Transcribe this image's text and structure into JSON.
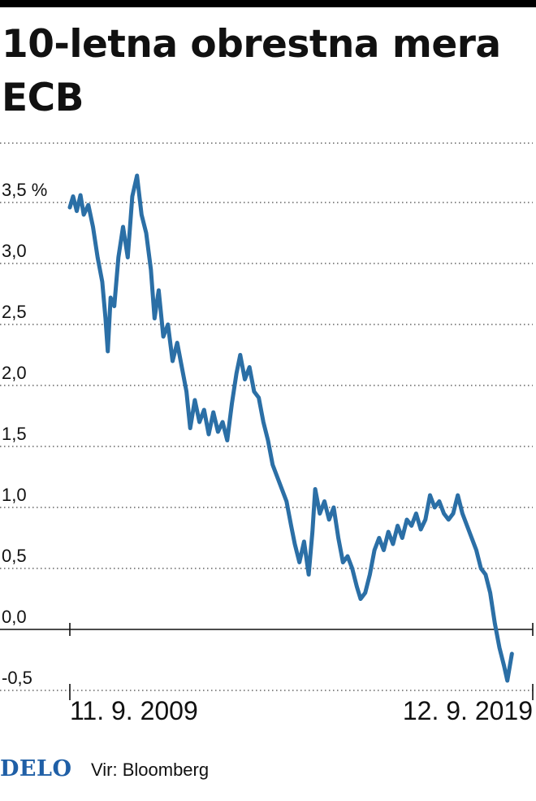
{
  "title": "10-letna obrestna mera ECB",
  "footer": {
    "brand": "DELO",
    "source": "Vir: Bloomberg"
  },
  "chart_data": {
    "type": "line",
    "title": "10-letna obrestna mera ECB",
    "xlabel": "",
    "ylabel": "",
    "ylim": [
      -0.6,
      3.9
    ],
    "y_ticks": [
      "3,5 %",
      "3,0",
      "2,5",
      "2,0",
      "1,5",
      "1,0",
      "0,5",
      "0,0",
      "-0,5"
    ],
    "y_tick_values": [
      3.5,
      3.0,
      2.5,
      2.0,
      1.5,
      1.0,
      0.5,
      0.0,
      -0.5
    ],
    "x_ticks": [
      "11. 9. 2009",
      "12. 9. 2019"
    ],
    "x_tick_values": [
      2009.7,
      2019.7
    ],
    "line_color": "#2b6fa6",
    "grid": "dotted horizontal",
    "series": [
      {
        "values": [
          [
            2009.7,
            3.46
          ],
          [
            2009.77,
            3.55
          ],
          [
            2009.85,
            3.43
          ],
          [
            2009.93,
            3.56
          ],
          [
            2010.0,
            3.4
          ],
          [
            2010.1,
            3.48
          ],
          [
            2010.2,
            3.3
          ],
          [
            2010.3,
            3.05
          ],
          [
            2010.4,
            2.85
          ],
          [
            2010.47,
            2.55
          ],
          [
            2010.52,
            2.28
          ],
          [
            2010.58,
            2.72
          ],
          [
            2010.66,
            2.65
          ],
          [
            2010.75,
            3.05
          ],
          [
            2010.85,
            3.3
          ],
          [
            2010.95,
            3.05
          ],
          [
            2011.05,
            3.55
          ],
          [
            2011.15,
            3.72
          ],
          [
            2011.25,
            3.4
          ],
          [
            2011.35,
            3.25
          ],
          [
            2011.45,
            2.95
          ],
          [
            2011.53,
            2.55
          ],
          [
            2011.62,
            2.78
          ],
          [
            2011.72,
            2.4
          ],
          [
            2011.82,
            2.5
          ],
          [
            2011.92,
            2.2
          ],
          [
            2012.02,
            2.35
          ],
          [
            2012.12,
            2.15
          ],
          [
            2012.22,
            1.95
          ],
          [
            2012.3,
            1.65
          ],
          [
            2012.4,
            1.88
          ],
          [
            2012.5,
            1.7
          ],
          [
            2012.6,
            1.8
          ],
          [
            2012.7,
            1.6
          ],
          [
            2012.8,
            1.78
          ],
          [
            2012.9,
            1.62
          ],
          [
            2013.0,
            1.7
          ],
          [
            2013.1,
            1.55
          ],
          [
            2013.2,
            1.85
          ],
          [
            2013.3,
            2.1
          ],
          [
            2013.38,
            2.25
          ],
          [
            2013.48,
            2.05
          ],
          [
            2013.58,
            2.15
          ],
          [
            2013.68,
            1.95
          ],
          [
            2013.78,
            1.9
          ],
          [
            2013.88,
            1.7
          ],
          [
            2013.98,
            1.55
          ],
          [
            2014.08,
            1.35
          ],
          [
            2014.18,
            1.25
          ],
          [
            2014.28,
            1.15
          ],
          [
            2014.38,
            1.05
          ],
          [
            2014.48,
            0.85
          ],
          [
            2014.56,
            0.7
          ],
          [
            2014.66,
            0.55
          ],
          [
            2014.76,
            0.72
          ],
          [
            2014.86,
            0.45
          ],
          [
            2014.94,
            0.8
          ],
          [
            2015.0,
            1.15
          ],
          [
            2015.1,
            0.95
          ],
          [
            2015.2,
            1.05
          ],
          [
            2015.3,
            0.9
          ],
          [
            2015.4,
            1.0
          ],
          [
            2015.5,
            0.75
          ],
          [
            2015.6,
            0.55
          ],
          [
            2015.7,
            0.6
          ],
          [
            2015.8,
            0.5
          ],
          [
            2015.9,
            0.35
          ],
          [
            2015.98,
            0.25
          ],
          [
            2016.08,
            0.3
          ],
          [
            2016.18,
            0.45
          ],
          [
            2016.28,
            0.65
          ],
          [
            2016.38,
            0.75
          ],
          [
            2016.48,
            0.65
          ],
          [
            2016.58,
            0.8
          ],
          [
            2016.68,
            0.7
          ],
          [
            2016.78,
            0.85
          ],
          [
            2016.88,
            0.75
          ],
          [
            2016.98,
            0.9
          ],
          [
            2017.08,
            0.85
          ],
          [
            2017.18,
            0.95
          ],
          [
            2017.28,
            0.82
          ],
          [
            2017.38,
            0.9
          ],
          [
            2017.48,
            1.1
          ],
          [
            2017.58,
            1.0
          ],
          [
            2017.68,
            1.05
          ],
          [
            2017.78,
            0.95
          ],
          [
            2017.88,
            0.9
          ],
          [
            2017.98,
            0.95
          ],
          [
            2018.08,
            1.1
          ],
          [
            2018.18,
            0.95
          ],
          [
            2018.28,
            0.85
          ],
          [
            2018.38,
            0.75
          ],
          [
            2018.48,
            0.65
          ],
          [
            2018.58,
            0.5
          ],
          [
            2018.68,
            0.45
          ],
          [
            2018.78,
            0.3
          ],
          [
            2018.88,
            0.05
          ],
          [
            2018.98,
            -0.15
          ],
          [
            2019.08,
            -0.3
          ],
          [
            2019.15,
            -0.42
          ],
          [
            2019.25,
            -0.2
          ]
        ]
      }
    ]
  }
}
